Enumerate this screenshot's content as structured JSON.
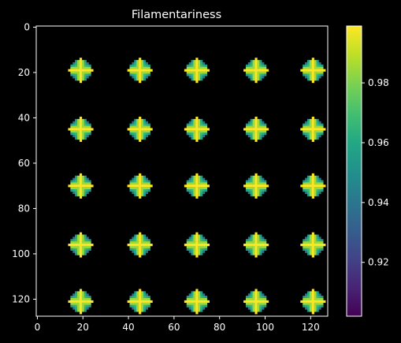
{
  "chart_data": {
    "type": "heatmap",
    "title": "Filamentariness",
    "xlabel": "",
    "ylabel": "",
    "image_size": [
      128,
      128
    ],
    "xlim": [
      -0.5,
      127.5
    ],
    "ylim": [
      127.5,
      -0.5
    ],
    "x_ticks": [
      "0",
      "20",
      "40",
      "60",
      "80",
      "100",
      "120"
    ],
    "x_tick_values": [
      0,
      20,
      40,
      60,
      80,
      100,
      120
    ],
    "y_ticks": [
      "0",
      "20",
      "40",
      "60",
      "80",
      "100",
      "120"
    ],
    "y_tick_values": [
      0,
      20,
      40,
      60,
      80,
      100,
      120
    ],
    "grid": false,
    "blob_centers_x": [
      19,
      44.5,
      70,
      95.5,
      121
    ],
    "blob_centers_y": [
      19,
      44.5,
      70,
      95.5,
      121
    ],
    "blob_radius": 4,
    "background_value": null,
    "colormap": "viridis",
    "colorbar": {
      "min": 0.902,
      "max": 0.999,
      "ticks": [
        "0.92",
        "0.94",
        "0.96",
        "0.98"
      ],
      "tick_values": [
        0.92,
        0.94,
        0.96,
        0.98
      ]
    },
    "colors": {
      "background": "#000000",
      "axes": "#ffffff",
      "text": "#ffffff",
      "empty_pixel": "#000000"
    }
  }
}
